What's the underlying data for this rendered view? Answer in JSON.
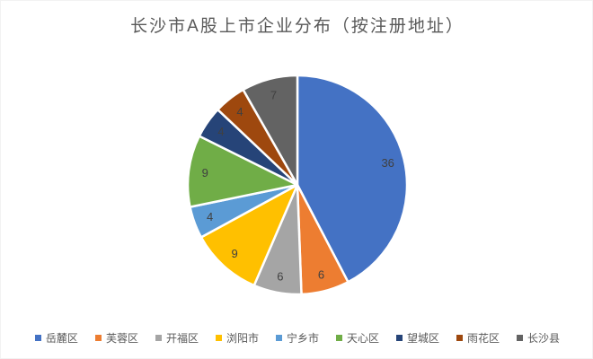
{
  "chart_data": {
    "type": "pie",
    "title": "长沙市A股上市企业分布（按注册地址）",
    "categories": [
      "岳麓区",
      "芙蓉区",
      "开福区",
      "浏阳市",
      "宁乡市",
      "天心区",
      "望城区",
      "雨花区",
      "长沙县"
    ],
    "values": [
      36,
      6,
      6,
      9,
      4,
      9,
      4,
      4,
      7
    ],
    "total": 85,
    "colors": [
      "#4472C4",
      "#ED7D31",
      "#A5A5A5",
      "#FFC000",
      "#5B9BD5",
      "#70AD47",
      "#264478",
      "#9E480E",
      "#636363"
    ],
    "data_labels_shown": true,
    "start_angle_deg": 0,
    "direction": "clockwise",
    "legend_position": "bottom",
    "slice_border_color": "#FFFFFF",
    "label_color": "#404040",
    "title_color": "#595959",
    "legend_text_color": "#595959",
    "background": "#FFFFFF"
  }
}
